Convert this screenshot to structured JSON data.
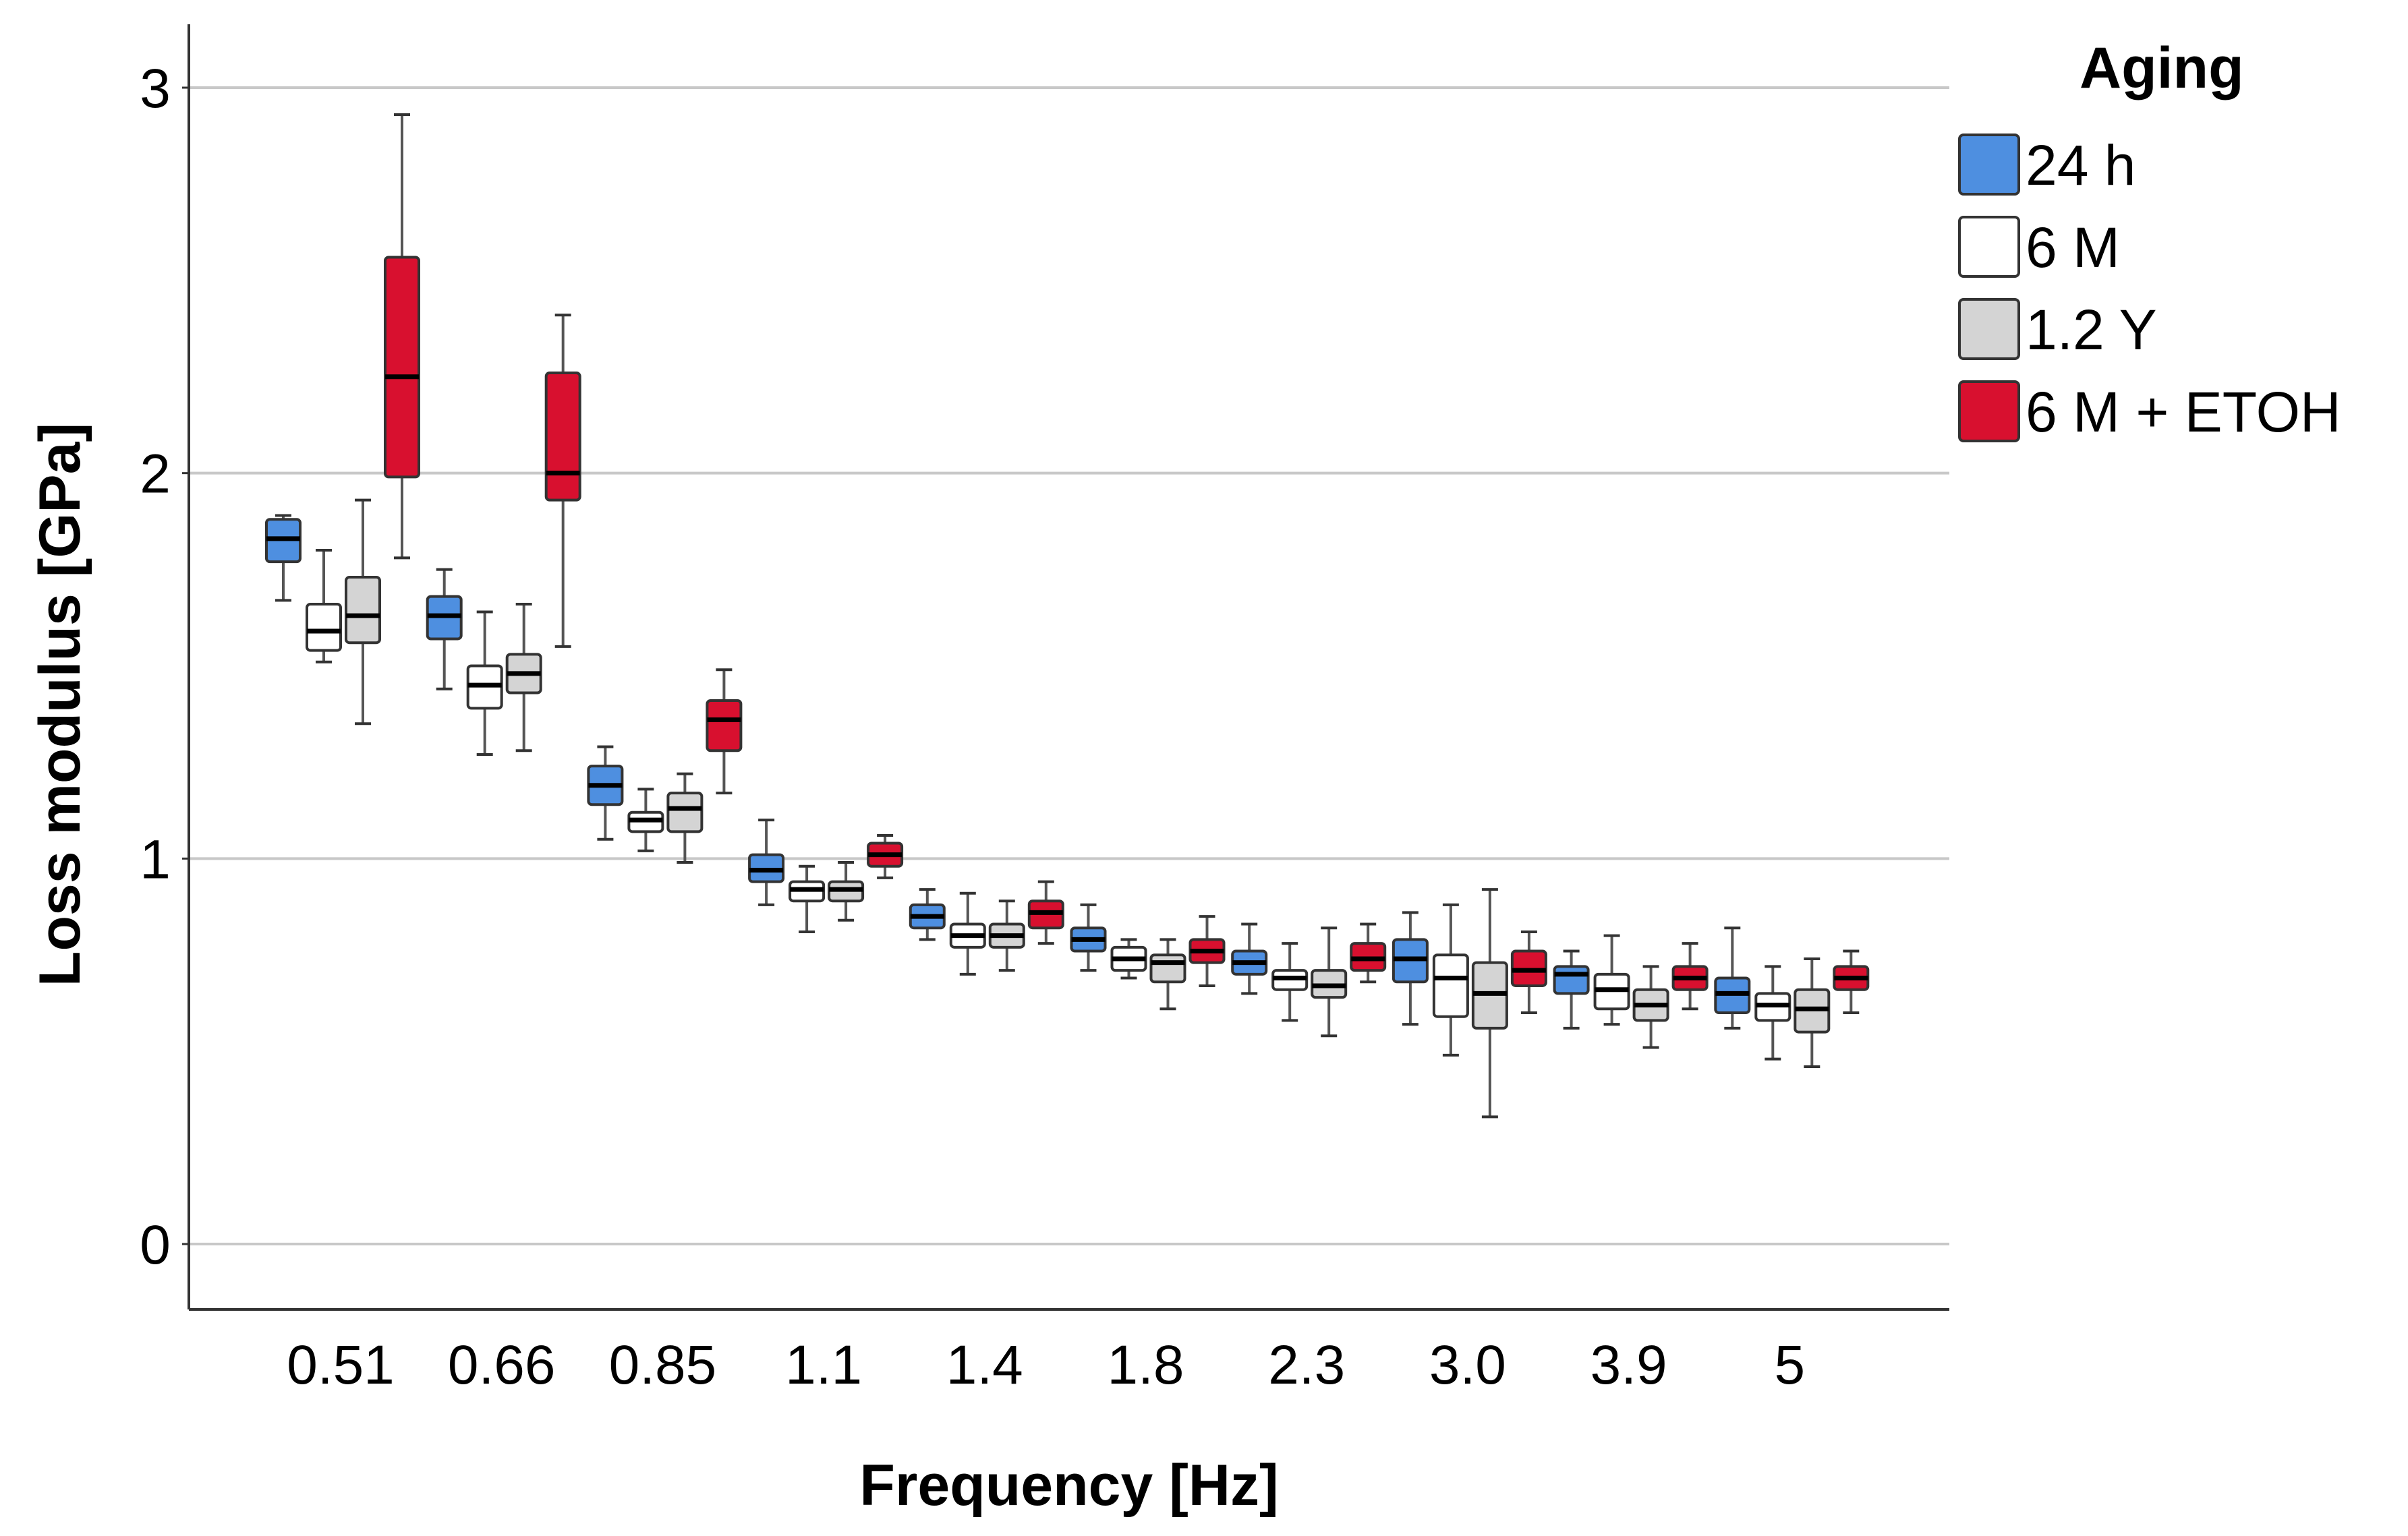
{
  "chart_data": {
    "type": "boxplot",
    "title": "",
    "xlabel": "Frequency [Hz]",
    "ylabel": "Loss modulus [GPa]",
    "ylim": [
      -0.17,
      3.15
    ],
    "yticks": [
      0,
      1,
      2,
      3
    ],
    "ytick_labels": [
      "0",
      "1",
      "2",
      "3"
    ],
    "grid": "horizontal",
    "legend_position": "top-right, outside plot",
    "legend_title": "Aging",
    "categories": [
      "0.51",
      "0.66",
      "0.85",
      "1.1",
      "1.4",
      "1.8",
      "2.3",
      "3.0",
      "3.9",
      "5"
    ],
    "series": [
      {
        "name": "24 h",
        "color": "#4e8fe0",
        "median_color": "#000000",
        "boxes": [
          {
            "whislo": 1.67,
            "q1": 1.77,
            "med": 1.83,
            "q3": 1.88,
            "whishi": 1.89
          },
          {
            "whislo": 1.44,
            "q1": 1.57,
            "med": 1.63,
            "q3": 1.68,
            "whishi": 1.75
          },
          {
            "whislo": 1.05,
            "q1": 1.14,
            "med": 1.19,
            "q3": 1.24,
            "whishi": 1.29
          },
          {
            "whislo": 0.88,
            "q1": 0.94,
            "med": 0.97,
            "q3": 1.01,
            "whishi": 1.1
          },
          {
            "whislo": 0.79,
            "q1": 0.82,
            "med": 0.85,
            "q3": 0.88,
            "whishi": 0.92
          },
          {
            "whislo": 0.71,
            "q1": 0.76,
            "med": 0.79,
            "q3": 0.82,
            "whishi": 0.88
          },
          {
            "whislo": 0.65,
            "q1": 0.7,
            "med": 0.73,
            "q3": 0.76,
            "whishi": 0.83
          },
          {
            "whislo": 0.57,
            "q1": 0.68,
            "med": 0.74,
            "q3": 0.79,
            "whishi": 0.86
          },
          {
            "whislo": 0.56,
            "q1": 0.65,
            "med": 0.7,
            "q3": 0.72,
            "whishi": 0.76
          },
          {
            "whislo": 0.56,
            "q1": 0.6,
            "med": 0.65,
            "q3": 0.69,
            "whishi": 0.82
          }
        ]
      },
      {
        "name": "6 M",
        "color": "#ffffff",
        "median_color": "#000000",
        "boxes": [
          {
            "whislo": 1.51,
            "q1": 1.54,
            "med": 1.59,
            "q3": 1.66,
            "whishi": 1.8
          },
          {
            "whislo": 1.27,
            "q1": 1.39,
            "med": 1.45,
            "q3": 1.5,
            "whishi": 1.64
          },
          {
            "whislo": 1.02,
            "q1": 1.07,
            "med": 1.1,
            "q3": 1.12,
            "whishi": 1.18
          },
          {
            "whislo": 0.81,
            "q1": 0.89,
            "med": 0.92,
            "q3": 0.94,
            "whishi": 0.98
          },
          {
            "whislo": 0.7,
            "q1": 0.77,
            "med": 0.8,
            "q3": 0.83,
            "whishi": 0.91
          },
          {
            "whislo": 0.69,
            "q1": 0.71,
            "med": 0.74,
            "q3": 0.77,
            "whishi": 0.79
          },
          {
            "whislo": 0.58,
            "q1": 0.66,
            "med": 0.69,
            "q3": 0.71,
            "whishi": 0.78
          },
          {
            "whislo": 0.49,
            "q1": 0.59,
            "med": 0.69,
            "q3": 0.75,
            "whishi": 0.88
          },
          {
            "whislo": 0.57,
            "q1": 0.61,
            "med": 0.66,
            "q3": 0.7,
            "whishi": 0.8
          },
          {
            "whislo": 0.48,
            "q1": 0.58,
            "med": 0.62,
            "q3": 0.65,
            "whishi": 0.72
          }
        ]
      },
      {
        "name": "1.2 Y",
        "color": "#d4d4d4",
        "median_color": "#000000",
        "boxes": [
          {
            "whislo": 1.35,
            "q1": 1.56,
            "med": 1.63,
            "q3": 1.73,
            "whishi": 1.93
          },
          {
            "whislo": 1.28,
            "q1": 1.43,
            "med": 1.48,
            "q3": 1.53,
            "whishi": 1.66
          },
          {
            "whislo": 0.99,
            "q1": 1.07,
            "med": 1.13,
            "q3": 1.17,
            "whishi": 1.22
          },
          {
            "whislo": 0.84,
            "q1": 0.89,
            "med": 0.92,
            "q3": 0.94,
            "whishi": 0.99
          },
          {
            "whislo": 0.71,
            "q1": 0.77,
            "med": 0.8,
            "q3": 0.83,
            "whishi": 0.89
          },
          {
            "whislo": 0.61,
            "q1": 0.68,
            "med": 0.73,
            "q3": 0.75,
            "whishi": 0.79
          },
          {
            "whislo": 0.54,
            "q1": 0.64,
            "med": 0.67,
            "q3": 0.71,
            "whishi": 0.82
          },
          {
            "whislo": 0.33,
            "q1": 0.56,
            "med": 0.65,
            "q3": 0.73,
            "whishi": 0.92
          },
          {
            "whislo": 0.51,
            "q1": 0.58,
            "med": 0.62,
            "q3": 0.66,
            "whishi": 0.72
          },
          {
            "whislo": 0.46,
            "q1": 0.55,
            "med": 0.61,
            "q3": 0.66,
            "whishi": 0.74
          }
        ]
      },
      {
        "name": "6 M + ETOH",
        "color": "#d8102f",
        "median_color": "#000000",
        "boxes": [
          {
            "whislo": 1.78,
            "q1": 1.99,
            "med": 2.25,
            "q3": 2.56,
            "whishi": 2.93
          },
          {
            "whislo": 1.55,
            "q1": 1.93,
            "med": 2.0,
            "q3": 2.26,
            "whishi": 2.41
          },
          {
            "whislo": 1.17,
            "q1": 1.28,
            "med": 1.36,
            "q3": 1.41,
            "whishi": 1.49
          },
          {
            "whislo": 0.95,
            "q1": 0.98,
            "med": 1.01,
            "q3": 1.04,
            "whishi": 1.06
          },
          {
            "whislo": 0.78,
            "q1": 0.82,
            "med": 0.86,
            "q3": 0.89,
            "whishi": 0.94
          },
          {
            "whislo": 0.67,
            "q1": 0.73,
            "med": 0.76,
            "q3": 0.79,
            "whishi": 0.85
          },
          {
            "whislo": 0.68,
            "q1": 0.71,
            "med": 0.74,
            "q3": 0.78,
            "whishi": 0.83
          },
          {
            "whislo": 0.6,
            "q1": 0.67,
            "med": 0.71,
            "q3": 0.76,
            "whishi": 0.81
          },
          {
            "whislo": 0.61,
            "q1": 0.66,
            "med": 0.69,
            "q3": 0.72,
            "whishi": 0.78
          },
          {
            "whislo": 0.6,
            "q1": 0.66,
            "med": 0.69,
            "q3": 0.72,
            "whishi": 0.76
          }
        ]
      }
    ]
  }
}
